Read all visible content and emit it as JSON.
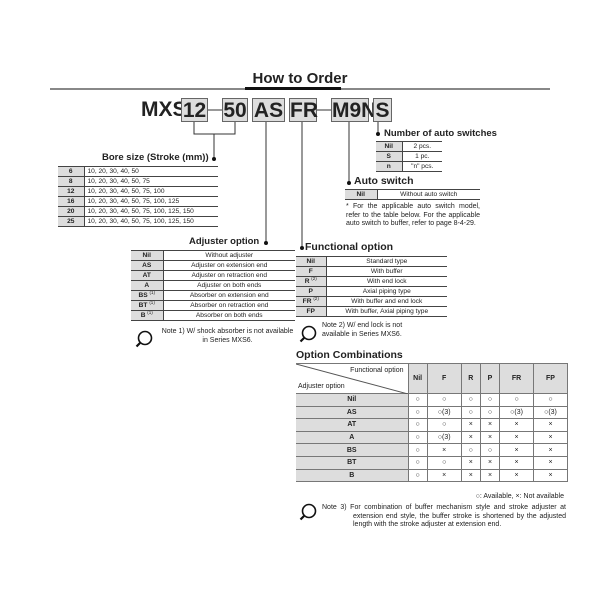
{
  "title": "How to Order",
  "code": {
    "prefix": "MXS",
    "bore": "12",
    "stroke": "50",
    "adjuster": "AS",
    "functional": "FR",
    "auto_switch": "M9N",
    "number": "S"
  },
  "number_of_switches": {
    "heading": "Number of auto switches",
    "rows": [
      [
        "Nil",
        "2 pcs."
      ],
      [
        "S",
        "1 pc."
      ],
      [
        "n",
        "\"n\" pcs."
      ]
    ]
  },
  "auto_switch": {
    "heading": "Auto switch",
    "rows": [
      [
        "Nil",
        "Without auto switch"
      ]
    ],
    "note": "* For the applicable auto switch model, refer to the table below. For the applicable auto switch to buffer, refer to page 8-4-29."
  },
  "bore": {
    "heading": "Bore size (Stroke (mm))",
    "rows": [
      [
        "6",
        "10, 20, 30, 40, 50"
      ],
      [
        "8",
        "10, 20, 30, 40, 50, 75"
      ],
      [
        "12",
        "10, 20, 30, 40, 50, 75, 100"
      ],
      [
        "16",
        "10, 20, 30, 40, 50, 75, 100, 125"
      ],
      [
        "20",
        "10, 20, 30, 40, 50, 75, 100, 125, 150"
      ],
      [
        "25",
        "10, 20, 30, 40, 50, 75, 100, 125, 150"
      ]
    ]
  },
  "adjuster": {
    "heading": "Adjuster option",
    "rows": [
      [
        "Nil",
        "",
        "Without adjuster"
      ],
      [
        "AS",
        "",
        "Adjuster on extension end"
      ],
      [
        "AT",
        "",
        "Adjuster on retraction end"
      ],
      [
        "A",
        "",
        "Adjuster on both ends"
      ],
      [
        "BS",
        "(1)",
        "Absorber on extension end"
      ],
      [
        "BT",
        "(1)",
        "Absorber on retraction end"
      ],
      [
        "B",
        "(1)",
        "Absorber on both ends"
      ]
    ],
    "note": "Note 1) W/ shock absorber is not available in Series MXS6."
  },
  "functional": {
    "heading": "Functional option",
    "rows": [
      [
        "Nil",
        "",
        "Standard type"
      ],
      [
        "F",
        "",
        "With buffer"
      ],
      [
        "R",
        "(2)",
        "With end lock"
      ],
      [
        "P",
        "",
        "Axial piping type"
      ],
      [
        "FR",
        "(2)",
        "With buffer and end lock"
      ],
      [
        "FP",
        "",
        "With buffer, Axial piping type"
      ]
    ],
    "note": "Note 2) W/ end lock is not available in Series MXS6."
  },
  "combinations": {
    "heading": "Option Combinations",
    "corner_top": "Functional option",
    "corner_bottom": "Adjuster option",
    "columns": [
      "Nil",
      "F",
      "R",
      "P",
      "FR",
      "FP"
    ],
    "rows": [
      {
        "label": "Nil",
        "cells": [
          "○",
          "○",
          "○",
          "○",
          "○",
          "○"
        ]
      },
      {
        "label": "AS",
        "cells": [
          "○",
          "○(3)",
          "○",
          "○",
          "○(3)",
          "○(3)"
        ]
      },
      {
        "label": "AT",
        "cells": [
          "○",
          "○",
          "×",
          "×",
          "×",
          "×"
        ]
      },
      {
        "label": "A",
        "cells": [
          "○",
          "○(3)",
          "×",
          "×",
          "×",
          "×"
        ]
      },
      {
        "label": "BS",
        "cells": [
          "○",
          "×",
          "○",
          "○",
          "×",
          "×"
        ]
      },
      {
        "label": "BT",
        "cells": [
          "○",
          "○",
          "×",
          "×",
          "×",
          "×"
        ]
      },
      {
        "label": "B",
        "cells": [
          "○",
          "×",
          "×",
          "×",
          "×",
          "×"
        ]
      }
    ],
    "legend": "○: Available,  ×: Not available",
    "note": "Note 3) For combination of buffer mechanism style and stroke adjuster at extension end style, the buffer stroke is shortened by the adjusted length with the stroke adjuster at extension end."
  }
}
